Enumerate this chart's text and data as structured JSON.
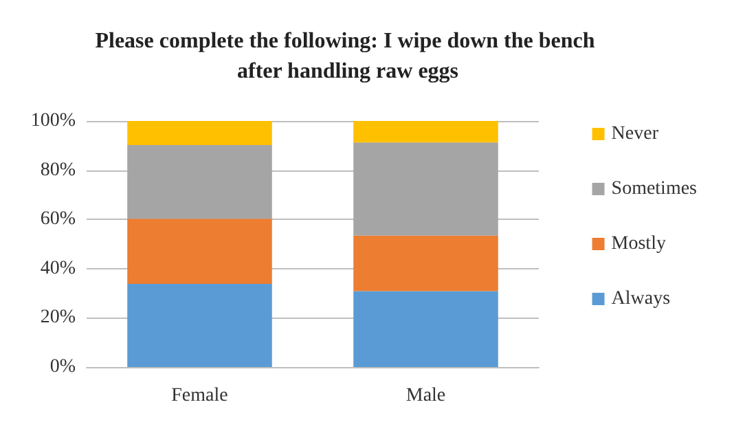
{
  "chart_data": {
    "type": "bar",
    "stacked": true,
    "title": "Please complete the following: I wipe down the bench after handling raw eggs",
    "categories": [
      "Female",
      "Male"
    ],
    "series": [
      {
        "name": "Always",
        "color": "#5b9bd5",
        "values": [
          33.8,
          30.9
        ]
      },
      {
        "name": "Mostly",
        "color": "#ed7d31",
        "values": [
          26.5,
          22.5
        ]
      },
      {
        "name": "Sometimes",
        "color": "#a5a5a5",
        "values": [
          29.9,
          37.9
        ]
      },
      {
        "name": "Never",
        "color": "#ffc000",
        "values": [
          9.8,
          8.7
        ]
      }
    ],
    "ylim": [
      0,
      100
    ],
    "yticks": [
      {
        "value": 0,
        "label": "0%"
      },
      {
        "value": 20,
        "label": "20%"
      },
      {
        "value": 40,
        "label": "40%"
      },
      {
        "value": 60,
        "label": "60%"
      },
      {
        "value": 80,
        "label": "80%"
      },
      {
        "value": 100,
        "label": "100%"
      }
    ],
    "grid": "y",
    "legend": "right"
  }
}
